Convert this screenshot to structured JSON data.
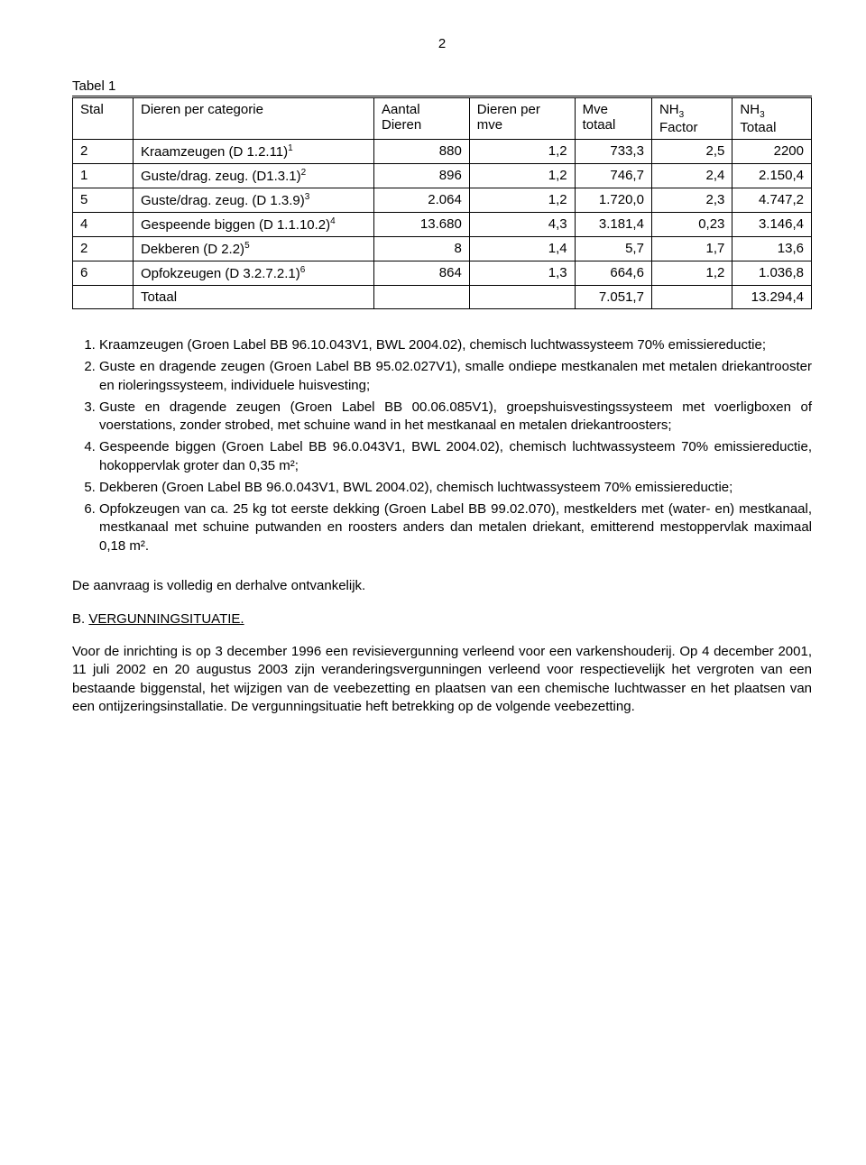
{
  "pageNumber": "2",
  "table": {
    "caption": "Tabel 1",
    "columns": [
      "Stal",
      "Dieren per categorie",
      "Aantal Dieren",
      "Dieren per mve",
      "Mve totaal",
      "NH₃ Factor",
      "NH₃ Totaal"
    ],
    "rows": [
      {
        "stal": "2",
        "cat": "Kraamzeugen (D 1.2.11)",
        "sup": "1",
        "aantal": "880",
        "per_mve": "1,2",
        "mve_tot": "733,3",
        "factor": "2,5",
        "nh3": "2200"
      },
      {
        "stal": "1",
        "cat": "Guste/drag. zeug. (D1.3.1)",
        "sup": "2",
        "aantal": "896",
        "per_mve": "1,2",
        "mve_tot": "746,7",
        "factor": "2,4",
        "nh3": "2.150,4"
      },
      {
        "stal": "5",
        "cat": "Guste/drag. zeug. (D 1.3.9)",
        "sup": "3",
        "aantal": "2.064",
        "per_mve": "1,2",
        "mve_tot": "1.720,0",
        "factor": "2,3",
        "nh3": "4.747,2"
      },
      {
        "stal": "4",
        "cat": "Gespeende biggen (D 1.1.10.2)",
        "sup": "4",
        "aantal": "13.680",
        "per_mve": "4,3",
        "mve_tot": "3.181,4",
        "factor": "0,23",
        "nh3": "3.146,4"
      },
      {
        "stal": "2",
        "cat": "Dekberen (D 2.2)",
        "sup": "5",
        "aantal": "8",
        "per_mve": "1,4",
        "mve_tot": "5,7",
        "factor": "1,7",
        "nh3": "13,6"
      },
      {
        "stal": "6",
        "cat": "Opfokzeugen (D 3.2.7.2.1)",
        "sup": "6",
        "aantal": "864",
        "per_mve": "1,3",
        "mve_tot": "664,6",
        "factor": "1,2",
        "nh3": "1.036,8"
      }
    ],
    "totalRow": {
      "label": "Totaal",
      "mve_tot": "7.051,7",
      "nh3": "13.294,4"
    }
  },
  "notes": [
    "Kraamzeugen (Groen Label BB 96.10.043V1, BWL 2004.02), chemisch luchtwassysteem 70% emissiereductie;",
    "Guste en dragende zeugen (Groen Label BB 95.02.027V1), smalle ondiepe mestkanalen met metalen driekantrooster en rioleringssysteem, individuele huisvesting;",
    "Guste en dragende zeugen (Groen Label BB 00.06.085V1), groepshuisvestingssysteem met voerligboxen of voerstations, zonder strobed, met schuine wand in het mestkanaal en metalen driekantroosters;",
    "Gespeende biggen (Groen Label BB 96.0.043V1, BWL 2004.02), chemisch luchtwassysteem 70% emissiereductie, hokoppervlak groter dan 0,35 m²;",
    "Dekberen (Groen Label BB 96.0.043V1, BWL 2004.02), chemisch luchtwassysteem 70% emissiereductie;",
    "Opfokzeugen van ca. 25 kg tot eerste dekking (Groen Label BB 99.02.070), mestkelders met (water- en) mestkanaal, mestkanaal met schuine putwanden en roosters anders dan metalen driekant, emitterend mestoppervlak maximaal 0,18 m²."
  ],
  "paragraph1": "De aanvraag is volledig en derhalve ontvankelijk.",
  "sectionB": {
    "prefix": "B. ",
    "title": "VERGUNNINGSITUATIE.",
    "body": "Voor de inrichting is op 3 december 1996 een revisievergunning verleend voor een varkenshouderij. Op 4 december 2001, 11 juli 2002 en 20 augustus 2003 zijn veranderingsvergunningen verleend voor respectievelijk het vergroten van een bestaande biggenstal, het wijzigen van de veebezetting en plaatsen van een chemische luchtwasser en het plaatsen van een ontijzeringsinstallatie. De vergunningsituatie heft betrekking op de volgende veebezetting."
  }
}
